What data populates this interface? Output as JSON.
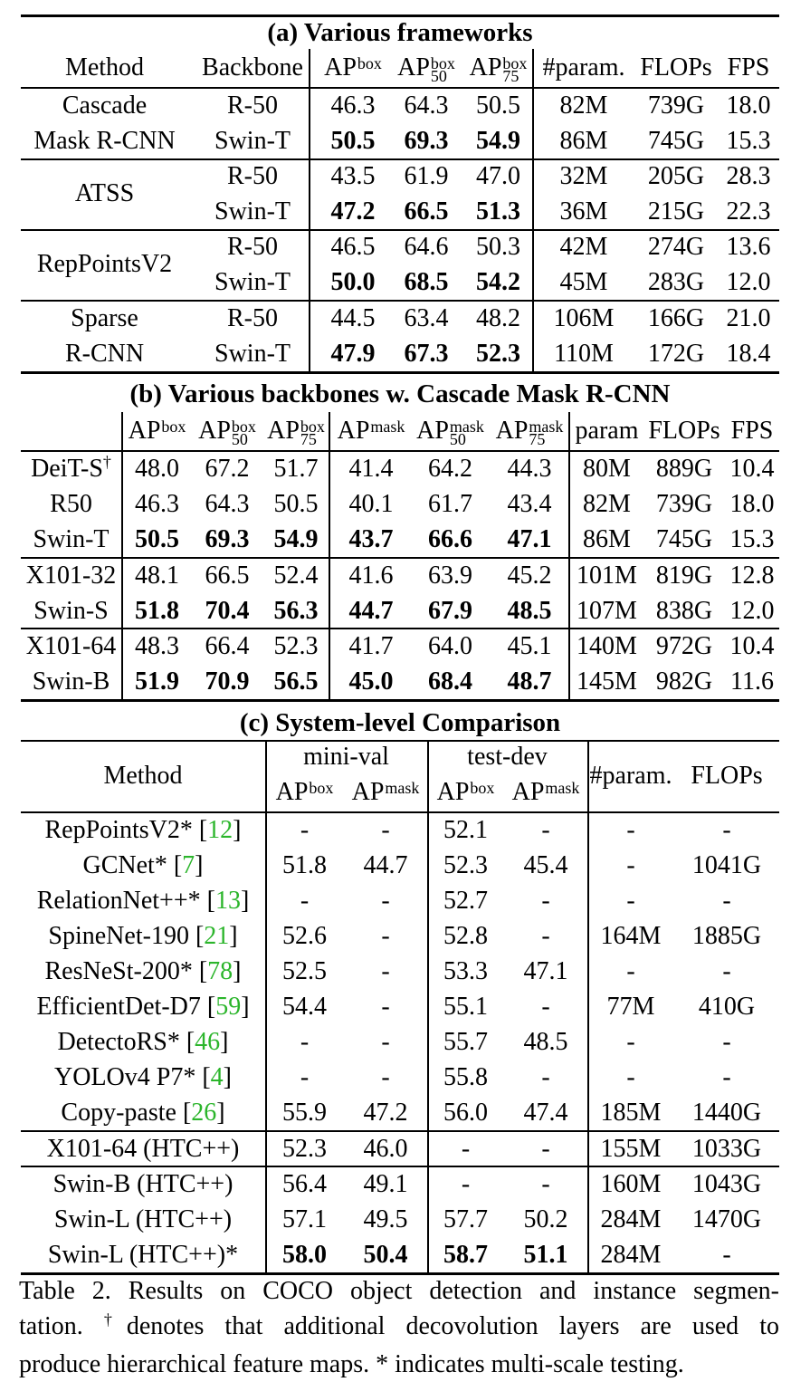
{
  "table_a": {
    "title": "(a) Various frameworks",
    "headers": {
      "method": "Method",
      "backbone": "Backbone",
      "ap": "AP",
      "ap50": "AP",
      "ap75": "AP",
      "sup_box": "box",
      "sub_50": "50",
      "sub_75": "75",
      "param": "#param.",
      "flops": "FLOPs",
      "fps": "FPS"
    },
    "rows": [
      {
        "method": "Cascade",
        "backbone": "R-50",
        "ap": "46.3",
        "ap50": "64.3",
        "ap75": "50.5",
        "param": "82M",
        "flops": "739G",
        "fps": "18.0"
      },
      {
        "method": "Mask R-CNN",
        "backbone": "Swin-T",
        "ap": "50.5",
        "ap50": "69.3",
        "ap75": "54.9",
        "param": "86M",
        "flops": "745G",
        "fps": "15.3"
      },
      {
        "method": "",
        "backbone": "R-50",
        "ap": "43.5",
        "ap50": "61.9",
        "ap75": "47.0",
        "param": "32M",
        "flops": "205G",
        "fps": "28.3"
      },
      {
        "method": "",
        "backbone": "Swin-T",
        "ap": "47.2",
        "ap50": "66.5",
        "ap75": "51.3",
        "param": "36M",
        "flops": "215G",
        "fps": "22.3"
      },
      {
        "method": "",
        "backbone": "R-50",
        "ap": "46.5",
        "ap50": "64.6",
        "ap75": "50.3",
        "param": "42M",
        "flops": "274G",
        "fps": "13.6"
      },
      {
        "method": "",
        "backbone": "Swin-T",
        "ap": "50.0",
        "ap50": "68.5",
        "ap75": "54.2",
        "param": "45M",
        "flops": "283G",
        "fps": "12.0"
      },
      {
        "method": "Sparse",
        "backbone": "R-50",
        "ap": "44.5",
        "ap50": "63.4",
        "ap75": "48.2",
        "param": "106M",
        "flops": "166G",
        "fps": "21.0"
      },
      {
        "method": "R-CNN",
        "backbone": "Swin-T",
        "ap": "47.9",
        "ap50": "67.3",
        "ap75": "52.3",
        "param": "110M",
        "flops": "172G",
        "fps": "18.4"
      }
    ],
    "merged_methods": [
      "ATSS",
      "RepPointsV2"
    ]
  },
  "table_b": {
    "title": "(b) Various backbones w. Cascade Mask R-CNN",
    "headers": {
      "ap": "AP",
      "sup_box": "box",
      "sup_mask": "mask",
      "sub_50": "50",
      "sub_75": "75",
      "param": "param",
      "flops": "FLOPs",
      "fps": "FPS"
    },
    "rows": [
      {
        "name": "DeiT-S",
        "dagger": "†",
        "v": [
          "48.0",
          "67.2",
          "51.7",
          "41.4",
          "64.2",
          "44.3"
        ],
        "param": "80M",
        "flops": "889G",
        "fps": "10.4"
      },
      {
        "name": "R50",
        "dagger": "",
        "v": [
          "46.3",
          "64.3",
          "50.5",
          "40.1",
          "61.7",
          "43.4"
        ],
        "param": "82M",
        "flops": "739G",
        "fps": "18.0"
      },
      {
        "name": "Swin-T",
        "dagger": "",
        "v": [
          "50.5",
          "69.3",
          "54.9",
          "43.7",
          "66.6",
          "47.1"
        ],
        "param": "86M",
        "flops": "745G",
        "fps": "15.3"
      },
      {
        "name": "X101-32",
        "dagger": "",
        "v": [
          "48.1",
          "66.5",
          "52.4",
          "41.6",
          "63.9",
          "45.2"
        ],
        "param": "101M",
        "flops": "819G",
        "fps": "12.8"
      },
      {
        "name": "Swin-S",
        "dagger": "",
        "v": [
          "51.8",
          "70.4",
          "56.3",
          "44.7",
          "67.9",
          "48.5"
        ],
        "param": "107M",
        "flops": "838G",
        "fps": "12.0"
      },
      {
        "name": "X101-64",
        "dagger": "",
        "v": [
          "48.3",
          "66.4",
          "52.3",
          "41.7",
          "64.0",
          "45.1"
        ],
        "param": "140M",
        "flops": "972G",
        "fps": "10.4"
      },
      {
        "name": "Swin-B",
        "dagger": "",
        "v": [
          "51.9",
          "70.9",
          "56.5",
          "45.0",
          "68.4",
          "48.7"
        ],
        "param": "145M",
        "flops": "982G",
        "fps": "11.6"
      }
    ]
  },
  "table_c": {
    "title": "(c) System-level Comparison",
    "headers": {
      "method": "Method",
      "minival": "mini-val",
      "testdev": "test-dev",
      "ap": "AP",
      "sup_box": "box",
      "sup_mask": "mask",
      "param": "#param.",
      "flops": "FLOPs"
    },
    "rows": [
      {
        "method": "RepPointsV2* [",
        "ref": "12",
        "end": "]",
        "v": [
          "-",
          "-",
          "52.1",
          "-"
        ],
        "param": "-",
        "flops": "-"
      },
      {
        "method": "GCNet* [",
        "ref": "7",
        "end": "]",
        "v": [
          "51.8",
          "44.7",
          "52.3",
          "45.4"
        ],
        "param": "-",
        "flops": "1041G"
      },
      {
        "method": "RelationNet++* [",
        "ref": "13",
        "end": "]",
        "v": [
          "-",
          "-",
          "52.7",
          "-"
        ],
        "param": "-",
        "flops": "-"
      },
      {
        "method": "SpineNet-190 [",
        "ref": "21",
        "end": "]",
        "v": [
          "52.6",
          "-",
          "52.8",
          "-"
        ],
        "param": "164M",
        "flops": "1885G"
      },
      {
        "method": "ResNeSt-200* [",
        "ref": "78",
        "end": "]",
        "v": [
          "52.5",
          "-",
          "53.3",
          "47.1"
        ],
        "param": "-",
        "flops": "-"
      },
      {
        "method": "EfficientDet-D7 [",
        "ref": "59",
        "end": "]",
        "v": [
          "54.4",
          "-",
          "55.1",
          "-"
        ],
        "param": "77M",
        "flops": "410G"
      },
      {
        "method": "DetectoRS* [",
        "ref": "46",
        "end": "]",
        "v": [
          "-",
          "-",
          "55.7",
          "48.5"
        ],
        "param": "-",
        "flops": "-"
      },
      {
        "method": "YOLOv4 P7* [",
        "ref": "4",
        "end": "]",
        "v": [
          "-",
          "-",
          "55.8",
          "-"
        ],
        "param": "-",
        "flops": "-"
      },
      {
        "method": "Copy-paste [",
        "ref": "26",
        "end": "]",
        "v": [
          "55.9",
          "47.2",
          "56.0",
          "47.4"
        ],
        "param": "185M",
        "flops": "1440G"
      },
      {
        "method": "X101-64 (HTC++)",
        "ref": "",
        "end": "",
        "v": [
          "52.3",
          "46.0",
          "-",
          "-"
        ],
        "param": "155M",
        "flops": "1033G"
      },
      {
        "method": "Swin-B (HTC++)",
        "ref": "",
        "end": "",
        "v": [
          "56.4",
          "49.1",
          "-",
          "-"
        ],
        "param": "160M",
        "flops": "1043G"
      },
      {
        "method": "Swin-L (HTC++)",
        "ref": "",
        "end": "",
        "v": [
          "57.1",
          "49.5",
          "57.7",
          "50.2"
        ],
        "param": "284M",
        "flops": "1470G"
      },
      {
        "method": "Swin-L (HTC++)*",
        "ref": "",
        "end": "",
        "v": [
          "58.0",
          "50.4",
          "58.7",
          "51.1"
        ],
        "param": "284M",
        "flops": "-"
      }
    ]
  },
  "caption": {
    "line1": "Table 2. Results on COCO object detection and instance segmen-",
    "line2_a": "tation.",
    "dagger": "†",
    "line2_b": "denotes that additional decovolution layers are used to",
    "line3": "produce hierarchical feature maps. * indicates multi-scale testing."
  }
}
